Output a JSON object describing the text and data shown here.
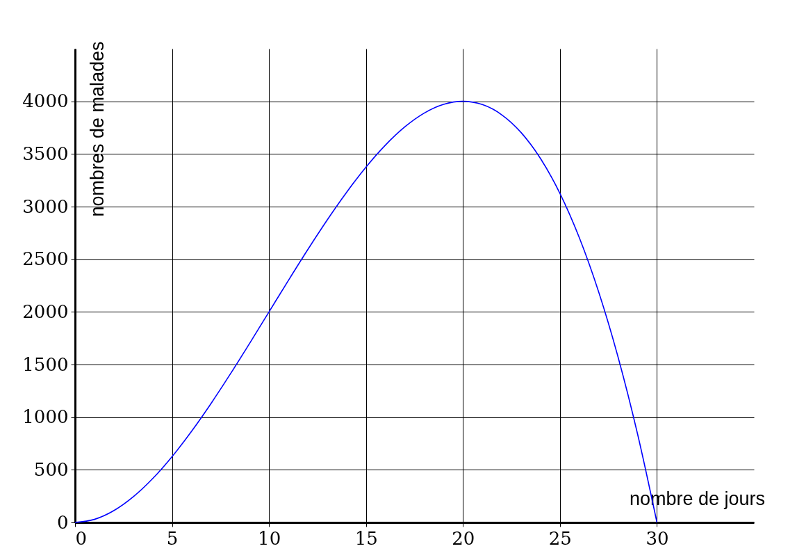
{
  "chart_data": {
    "type": "line",
    "xlabel": "nombre de jours",
    "ylabel": "nombres de malades",
    "x": [
      0,
      1,
      2,
      3,
      4,
      5,
      6,
      7,
      8,
      9,
      10,
      11,
      12,
      13,
      14,
      15,
      16,
      17,
      18,
      19,
      20,
      21,
      22,
      23,
      24,
      25,
      26,
      27,
      28,
      29,
      30
    ],
    "series": [
      {
        "color": "#0000ff",
        "values": [
          0,
          29,
          112,
          243,
          416,
          625,
          864,
          1127,
          1408,
          1701,
          2000,
          2299,
          2592,
          2873,
          3136,
          3375,
          3584,
          3757,
          3888,
          3971,
          4000,
          3969,
          3872,
          3703,
          3456,
          3125,
          2704,
          2187,
          1568,
          841,
          0
        ]
      }
    ],
    "xlim": [
      0,
      35
    ],
    "ylim": [
      0,
      4500
    ],
    "xticks": [
      0,
      5,
      10,
      15,
      20,
      25,
      30
    ],
    "yticks": [
      0,
      500,
      1000,
      1500,
      2000,
      2500,
      3000,
      3500,
      4000
    ],
    "grid": true,
    "legend": false,
    "marker": "none",
    "line_style": "solid"
  }
}
